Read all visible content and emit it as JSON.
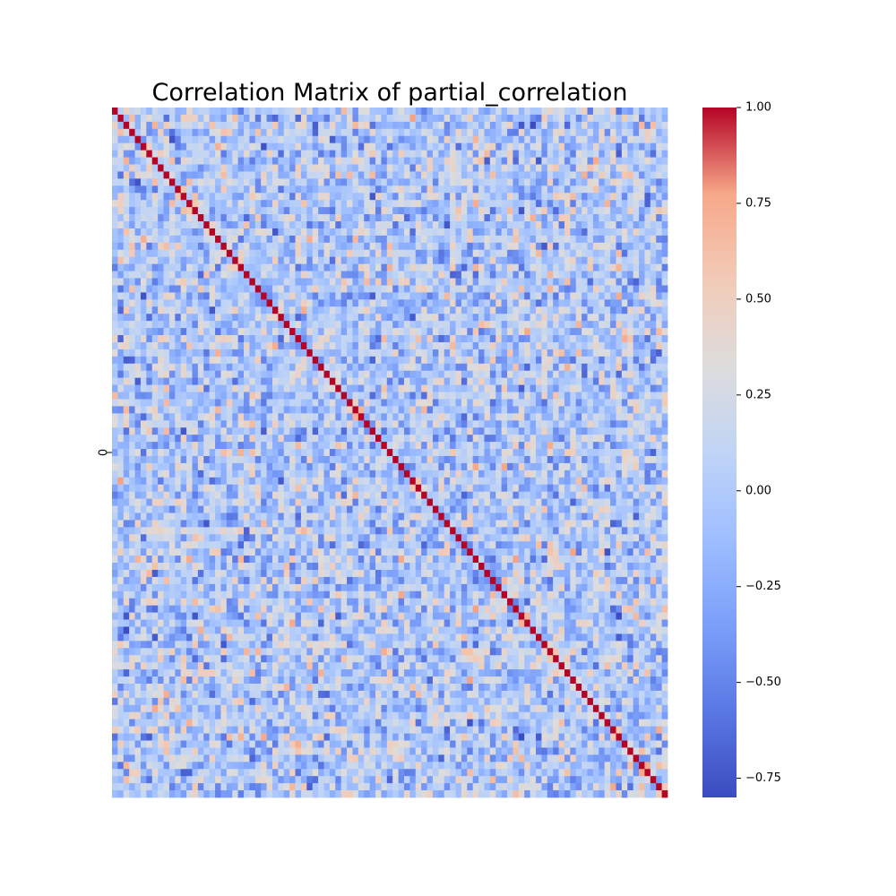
{
  "chart_data": {
    "type": "heatmap",
    "title": "Correlation Matrix of partial_correlation",
    "xlabel": "",
    "ylabel": "",
    "y_tick_labels": [
      "0"
    ],
    "x_tick_labels": [],
    "rows": 97,
    "cols": 97,
    "diagonal_value": 1.0,
    "off_diagonal_range_approx": [
      -0.8,
      0.7
    ],
    "values_note": "",
    "colormap": "coolwarm",
    "colorbar": {
      "vmin": -0.8,
      "vmax": 1.0,
      "ticks": [
        1.0,
        0.75,
        0.5,
        0.25,
        0.0,
        -0.25,
        -0.5,
        -0.75
      ],
      "tick_labels": [
        "1.00",
        "0.75",
        "0.50",
        "0.25",
        "0.00",
        "−0.25",
        "−0.50",
        "−0.75"
      ]
    },
    "colors": {
      "low": "#3b4cc0",
      "mid": "#dddddd",
      "high": "#b40426"
    },
    "grid": false,
    "legend": "colorbar-right"
  }
}
